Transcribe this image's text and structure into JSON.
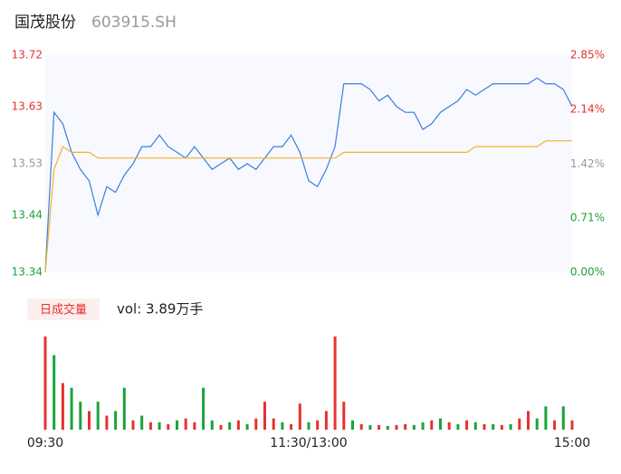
{
  "header": {
    "name": "国茂股份",
    "code": "603915.SH"
  },
  "chart_data": [
    {
      "type": "line",
      "x": [
        0,
        4,
        8,
        12,
        16,
        20,
        24,
        28,
        32,
        36,
        40,
        44,
        48,
        52,
        56,
        60,
        64,
        68,
        72,
        76,
        80,
        84,
        88,
        92,
        96,
        100,
        104,
        108,
        112,
        116,
        120,
        124,
        128,
        132,
        136,
        140,
        144,
        148,
        152,
        156,
        160,
        164,
        168,
        172,
        176,
        180,
        184,
        188,
        192,
        196,
        200,
        204,
        208,
        212,
        216,
        220,
        224,
        228,
        232,
        236,
        240
      ],
      "xlim": [
        0,
        240
      ],
      "xticks": [
        {
          "value": 0,
          "label": "09:30"
        },
        {
          "value": 120,
          "label": "11:30/13:00"
        },
        {
          "value": 240,
          "label": "15:00"
        }
      ],
      "ylim": [
        13.34,
        13.72
      ],
      "yticks": [
        13.34,
        13.44,
        13.53,
        13.63,
        13.72
      ],
      "y2lim": [
        0,
        2.85
      ],
      "y2ticks": [
        {
          "value": 0,
          "label": "0.00%"
        },
        {
          "value": 0.71,
          "label": "0.71%"
        },
        {
          "value": 1.42,
          "label": "1.42%"
        },
        {
          "value": 2.14,
          "label": "2.14%"
        },
        {
          "value": 2.85,
          "label": "2.85%"
        }
      ],
      "series": [
        {
          "color": "#3b7ddd",
          "values": [
            13.34,
            13.62,
            13.6,
            13.55,
            13.52,
            13.5,
            13.44,
            13.49,
            13.48,
            13.51,
            13.53,
            13.56,
            13.56,
            13.58,
            13.56,
            13.55,
            13.54,
            13.56,
            13.54,
            13.52,
            13.53,
            13.54,
            13.52,
            13.53,
            13.52,
            13.54,
            13.56,
            13.56,
            13.58,
            13.55,
            13.5,
            13.49,
            13.52,
            13.56,
            13.67,
            13.67,
            13.67,
            13.66,
            13.64,
            13.65,
            13.63,
            13.62,
            13.62,
            13.59,
            13.6,
            13.62,
            13.63,
            13.64,
            13.66,
            13.65,
            13.66,
            13.67,
            13.67,
            13.67,
            13.67,
            13.67,
            13.68,
            13.67,
            13.67,
            13.66,
            13.63
          ]
        },
        {
          "color": "#f5b027",
          "values": [
            13.34,
            13.52,
            13.56,
            13.55,
            13.55,
            13.55,
            13.54,
            13.54,
            13.54,
            13.54,
            13.54,
            13.54,
            13.54,
            13.54,
            13.54,
            13.54,
            13.54,
            13.54,
            13.54,
            13.54,
            13.54,
            13.54,
            13.54,
            13.54,
            13.54,
            13.54,
            13.54,
            13.54,
            13.54,
            13.54,
            13.54,
            13.54,
            13.54,
            13.54,
            13.55,
            13.55,
            13.55,
            13.55,
            13.55,
            13.55,
            13.55,
            13.55,
            13.55,
            13.55,
            13.55,
            13.55,
            13.55,
            13.55,
            13.55,
            13.56,
            13.56,
            13.56,
            13.56,
            13.56,
            13.56,
            13.56,
            13.56,
            13.57,
            13.57,
            13.57,
            13.57
          ]
        }
      ]
    },
    {
      "type": "bar",
      "label": "日成交量",
      "volume_text": "vol: 3.89万手",
      "x": [
        0,
        4,
        8,
        12,
        16,
        20,
        24,
        28,
        32,
        36,
        40,
        44,
        48,
        52,
        56,
        60,
        64,
        68,
        72,
        76,
        80,
        84,
        88,
        92,
        96,
        100,
        104,
        108,
        112,
        116,
        120,
        124,
        128,
        132,
        136,
        140,
        144,
        148,
        152,
        156,
        160,
        164,
        168,
        172,
        176,
        180,
        184,
        188,
        192,
        196,
        200,
        204,
        208,
        212,
        216,
        220,
        224,
        228,
        232,
        236,
        240
      ],
      "values": [
        100,
        80,
        50,
        45,
        30,
        20,
        30,
        15,
        20,
        45,
        10,
        15,
        8,
        8,
        6,
        10,
        12,
        8,
        45,
        10,
        5,
        8,
        10,
        6,
        12,
        30,
        12,
        8,
        6,
        28,
        8,
        10,
        20,
        100,
        30,
        10,
        6,
        5,
        5,
        4,
        5,
        6,
        5,
        8,
        10,
        12,
        8,
        6,
        10,
        8,
        6,
        6,
        5,
        6,
        12,
        20,
        12,
        25,
        10,
        25,
        10
      ],
      "colors": [
        "#e5322f",
        "#1aa33b",
        "#e5322f",
        "#1aa33b",
        "#1aa33b",
        "#e5322f",
        "#1aa33b",
        "#e5322f",
        "#1aa33b",
        "#1aa33b",
        "#e5322f",
        "#1aa33b",
        "#e5322f",
        "#1aa33b",
        "#e5322f",
        "#1aa33b",
        "#e5322f",
        "#e5322f",
        "#1aa33b",
        "#1aa33b",
        "#e5322f",
        "#1aa33b",
        "#e5322f",
        "#1aa33b",
        "#e5322f",
        "#e5322f",
        "#e5322f",
        "#1aa33b",
        "#e5322f",
        "#e5322f",
        "#1aa33b",
        "#e5322f",
        "#e5322f",
        "#e5322f",
        "#e5322f",
        "#1aa33b",
        "#e5322f",
        "#1aa33b",
        "#e5322f",
        "#1aa33b",
        "#e5322f",
        "#e5322f",
        "#1aa33b",
        "#1aa33b",
        "#e5322f",
        "#1aa33b",
        "#e5322f",
        "#1aa33b",
        "#e5322f",
        "#1aa33b",
        "#e5322f",
        "#1aa33b",
        "#e5322f",
        "#1aa33b",
        "#e5322f",
        "#e5322f",
        "#1aa33b",
        "#1aa33b",
        "#e5322f",
        "#1aa33b",
        "#e5322f"
      ]
    }
  ]
}
